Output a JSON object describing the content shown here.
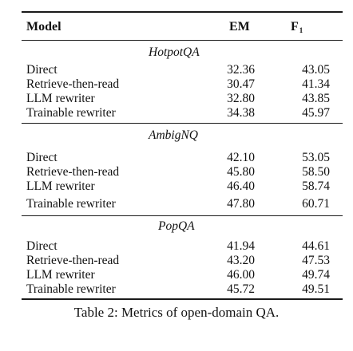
{
  "table": {
    "headers": {
      "model": "Model",
      "em": "EM",
      "f1_main": "F",
      "f1_sub": "1"
    },
    "sections": [
      {
        "title": "HotpotQA",
        "rows": [
          {
            "model": "Direct",
            "em": "32.36",
            "f1": "43.05"
          },
          {
            "model": "Retrieve-then-read",
            "em": "30.47",
            "f1": "41.34"
          },
          {
            "model": "LLM rewriter",
            "em": "32.80",
            "f1": "43.85"
          },
          {
            "model": "Trainable rewriter",
            "em": "34.38",
            "f1": "45.97"
          }
        ]
      },
      {
        "title": "AmbigNQ",
        "rows": [
          {
            "model": "Direct",
            "em": "42.10",
            "f1": "53.05"
          },
          {
            "model": "Retrieve-then-read",
            "em": "45.80",
            "f1": "58.50"
          },
          {
            "model": "LLM rewriter",
            "em": "46.40",
            "f1": "58.74"
          },
          {
            "model": "Trainable rewriter",
            "em": "47.80",
            "f1": "60.71"
          }
        ]
      },
      {
        "title": "PopQA",
        "rows": [
          {
            "model": "Direct",
            "em": "41.94",
            "f1": "44.61"
          },
          {
            "model": "Retrieve-then-read",
            "em": "43.20",
            "f1": "47.53"
          },
          {
            "model": "LLM rewriter",
            "em": "46.00",
            "f1": "49.74"
          },
          {
            "model": "Trainable rewriter",
            "em": "45.72",
            "f1": "49.51"
          }
        ]
      }
    ]
  },
  "caption": "Table 2: Metrics of open-domain QA."
}
